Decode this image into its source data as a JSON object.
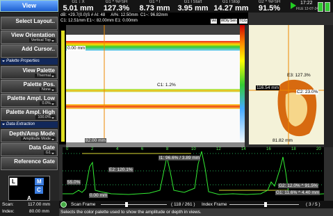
{
  "toolbar": {
    "view_button": "View",
    "readings": [
      {
        "label": "G1 ↕ X",
        "value": "5.01 mm"
      },
      {
        "label": "G1 ^ %FSH",
        "value": "127.3%"
      },
      {
        "label": "G1 ^ I",
        "value": "8.73 mm"
      },
      {
        "label": "G1 I Start",
        "value": "3.95 mm"
      },
      {
        "label": "G1 I Stop",
        "value": "14.27 mm"
      },
      {
        "label": "G2 ^ %FSH",
        "value": "91.5%"
      }
    ],
    "time": "17:22",
    "file": "FILE",
    "date": "12-07-24"
  },
  "menu": {
    "items": [
      {
        "label": "Select Layout.."
      },
      {
        "label": "View Orientation",
        "value": "Vertical Top"
      },
      {
        "label": "Add Cursor.."
      },
      {
        "section": "Palette Properties"
      },
      {
        "label": "View Palette",
        "value": "Thermal"
      },
      {
        "label": "Palette Pos.",
        "value": "None"
      },
      {
        "label": "Palette Ampl. Low",
        "value": "0.0%"
      },
      {
        "label": "Palette Ampl. High",
        "value": "100.0%"
      },
      {
        "section": "Data Extraction"
      },
      {
        "label": "Depth/Amp Mode",
        "value": "Amplitude Mode"
      },
      {
        "label": "Data Gate",
        "value": "G1"
      },
      {
        "label": "Reference Gate"
      }
    ],
    "gate_widget": [
      "L",
      "M",
      "C",
      "A"
    ]
  },
  "header": {
    "line1": "dB: +29.7(0.0)S # AI: 48     AI%: 12.50mm  C1~: 96.82mm",
    "line2": "C1: 12.51mm  E1~: 82.00mm  E1: 0.00mm",
    "buttons": [
      "Vel",
      "WDty",
      "Sen",
      "TCG"
    ]
  },
  "cscan": {
    "top_depth": "0.00 mm",
    "cursor": "C1: 1.2%",
    "position": "82.00 mm"
  },
  "end_view": {
    "amplitude": "E3: 127.3%",
    "index": "116.54 mm",
    "cursor": "C2: 23.0%",
    "position": "81.82 mm"
  },
  "ascan": {
    "scale": [
      0,
      2,
      4,
      6,
      8,
      10,
      12,
      14,
      16,
      18,
      20
    ],
    "echo": "E2: 120.1%",
    "interface": "I1: 96.6% / 3.89 mm",
    "level": "55.0%",
    "origin": "0.00 mm",
    "gate2": "G2: 12.0% ^ 91.5%",
    "gate1": "G1: 11.6% ^ 4.40 mm"
  },
  "frames": {
    "scan_label": "Scan Frame",
    "scan_count": "( 118 / 261 )",
    "index_label": "Index Frame",
    "index_count": "( 3 / 5 )"
  },
  "status": {
    "scan_label": "Scan:",
    "scan_value": "117.00 mm",
    "index_label": "Index:",
    "index_value": "80.00 mm",
    "message": "Selects the color palette used to show the amplitude or depth in views."
  }
}
